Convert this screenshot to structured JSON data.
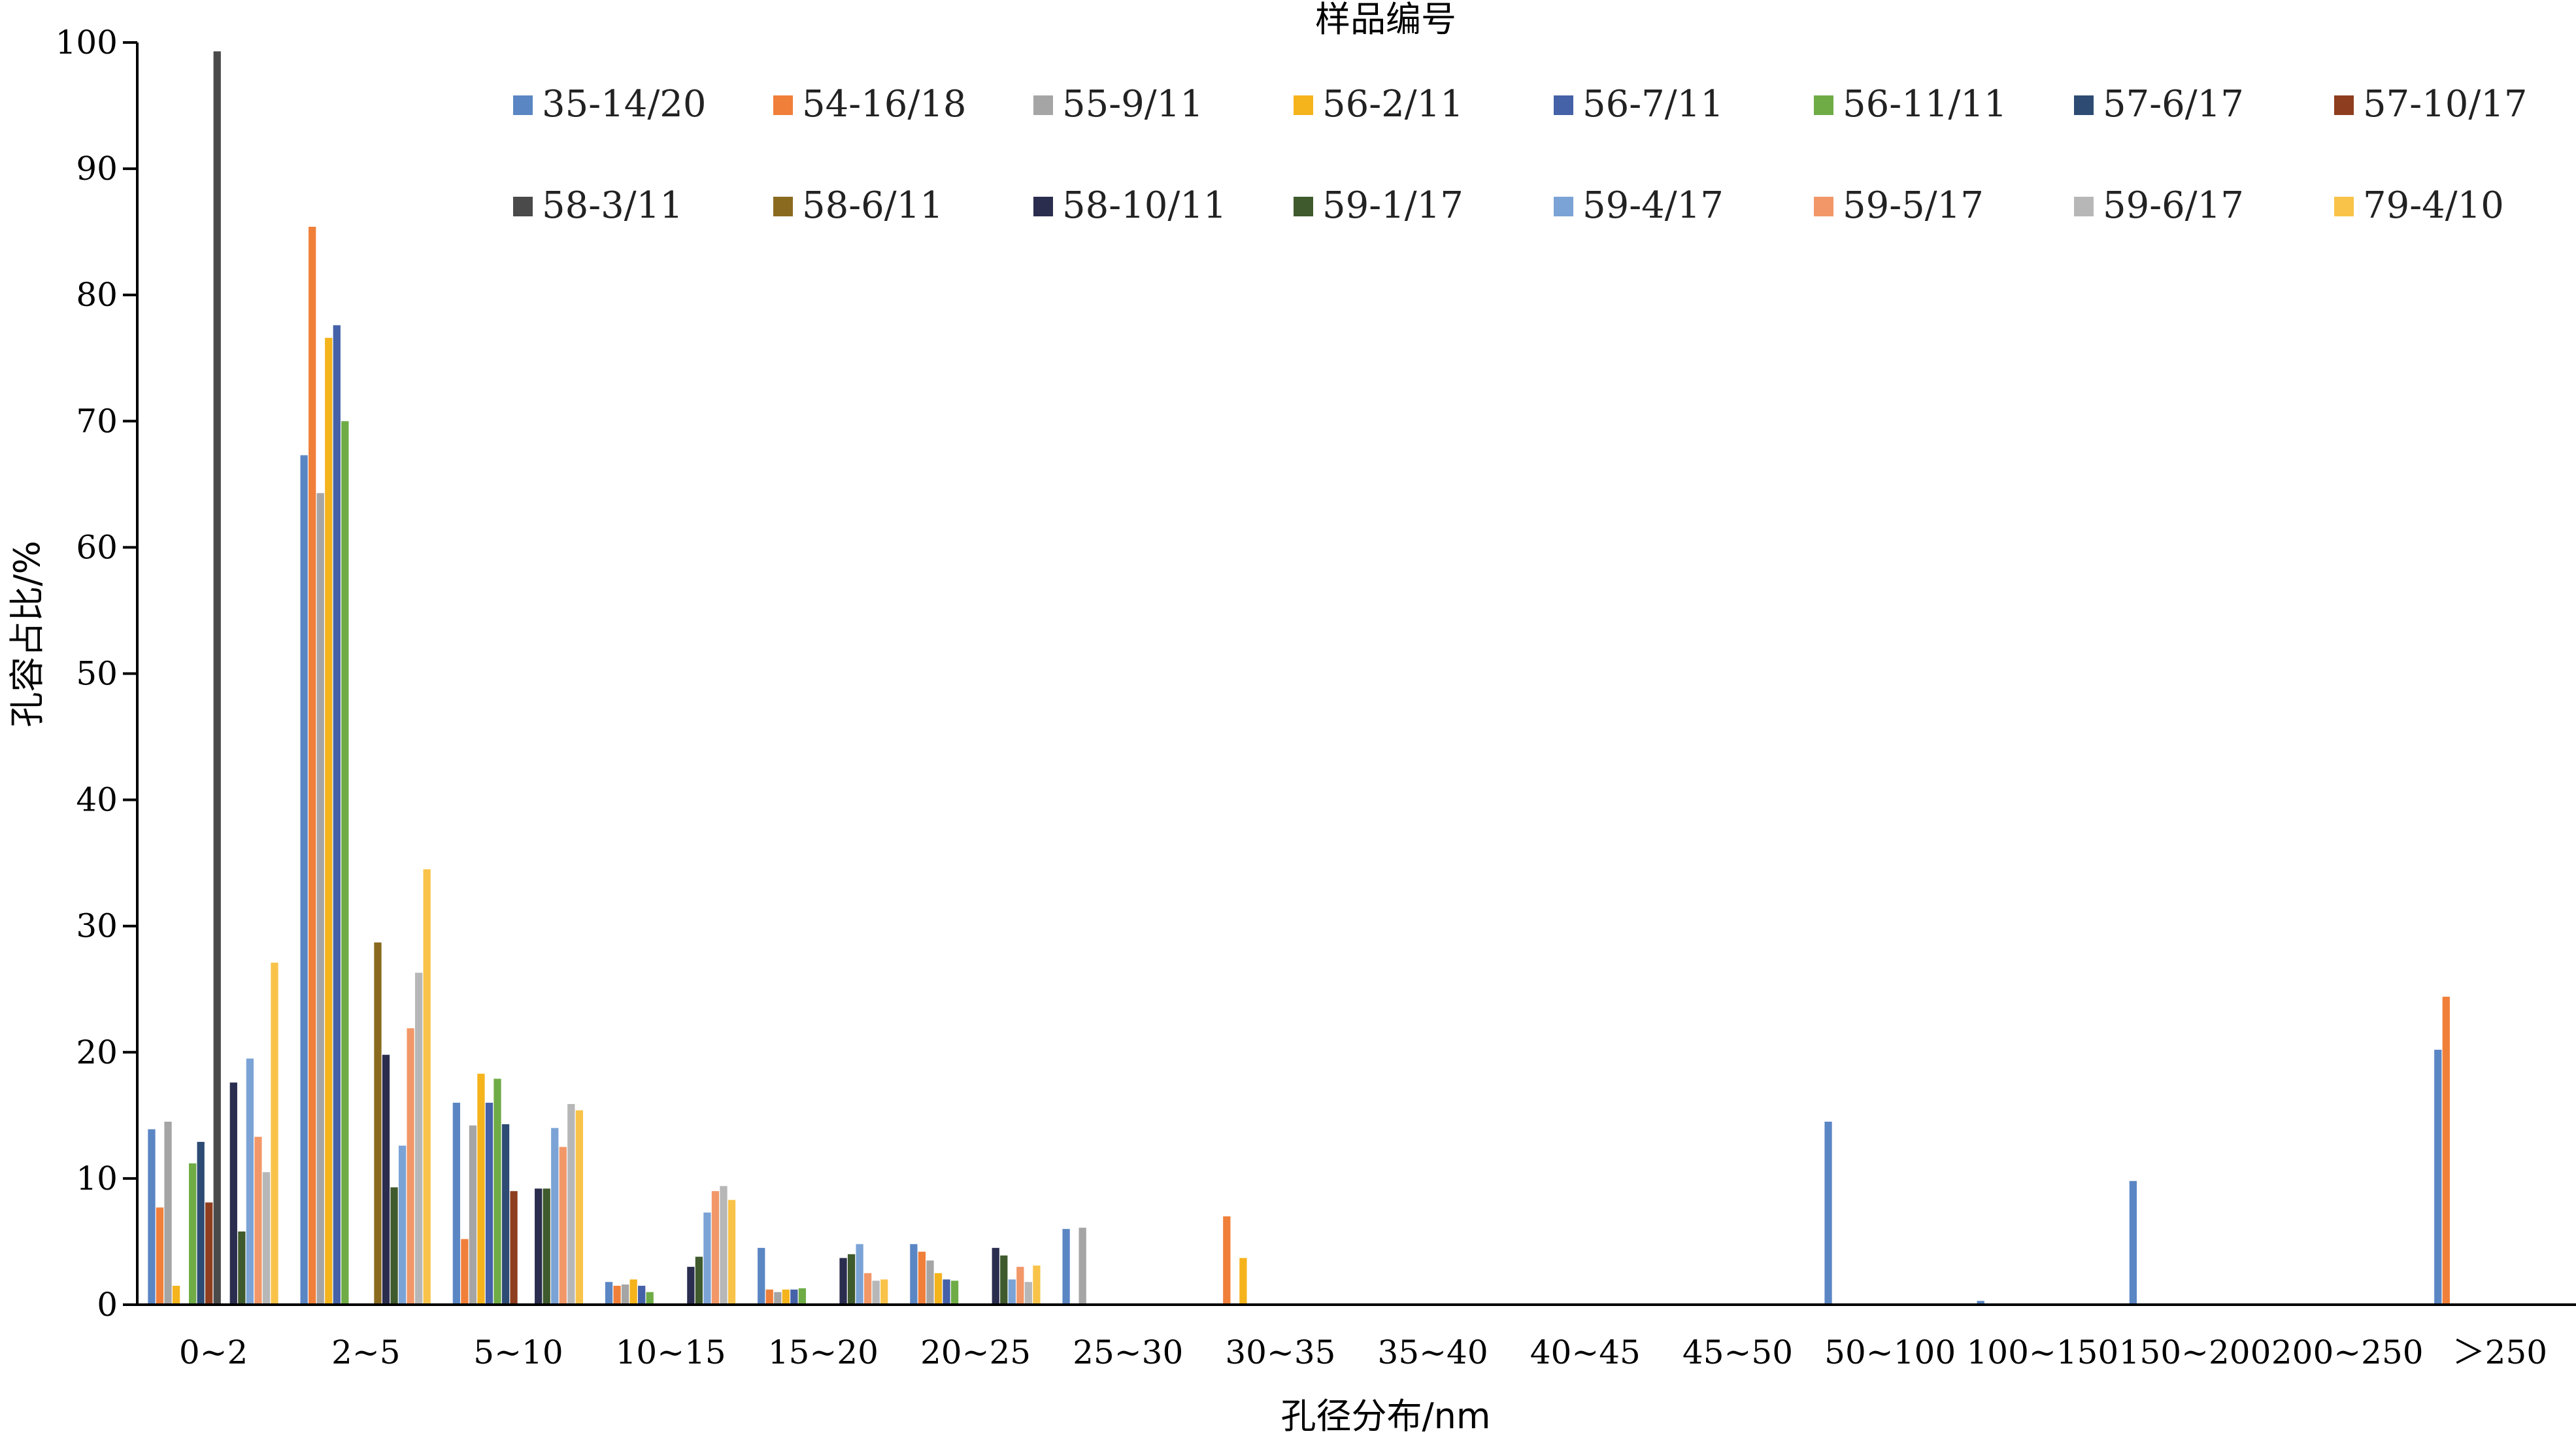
{
  "chart_data": {
    "type": "bar",
    "title": "",
    "xlabel": "孔径分布/nm",
    "ylabel": "孔容占比/%",
    "ylim": [
      0,
      100
    ],
    "yticks": [
      0,
      10,
      20,
      30,
      40,
      50,
      60,
      70,
      80,
      90,
      100
    ],
    "grid": false,
    "legend_title": "样品编号",
    "legend_position": "top-right",
    "categories": [
      "0~2",
      "2~5",
      "5~10",
      "10~15",
      "15~20",
      "20~25",
      "25~30",
      "30~35",
      "35~40",
      "40~45",
      "45~50",
      "50~100",
      "100~150",
      "150~200",
      "200~250",
      "＞250"
    ],
    "series": [
      {
        "name": "35-14/20",
        "color": "#5b86c4",
        "values": [
          13.9,
          67.3,
          16.0,
          1.8,
          4.5,
          4.8,
          6.0,
          0,
          0,
          0,
          0,
          14.5,
          0.3,
          9.8,
          0,
          20.2
        ]
      },
      {
        "name": "54-16/18",
        "color": "#f07f3a",
        "values": [
          7.7,
          85.4,
          5.2,
          1.5,
          1.2,
          4.2,
          0,
          7.0,
          0,
          0,
          0,
          0,
          0,
          0,
          0,
          24.4
        ]
      },
      {
        "name": "55-9/11",
        "color": "#a5a5a5",
        "values": [
          14.5,
          64.3,
          14.2,
          1.6,
          1.0,
          3.5,
          6.1,
          0,
          0,
          0,
          0,
          0,
          0,
          0,
          0,
          0
        ]
      },
      {
        "name": "56-2/11",
        "color": "#f5b31c",
        "values": [
          1.5,
          76.6,
          18.3,
          2.0,
          1.2,
          2.5,
          0,
          3.7,
          0,
          0,
          0,
          0,
          0,
          0,
          0,
          0
        ]
      },
      {
        "name": "56-7/11",
        "color": "#4561a8",
        "values": [
          0,
          77.6,
          16.0,
          1.5,
          1.2,
          2.0,
          0,
          0,
          0,
          0,
          0,
          0,
          0,
          0,
          0,
          0
        ]
      },
      {
        "name": "56-11/11",
        "color": "#6fac46",
        "values": [
          11.2,
          70.0,
          17.9,
          1.0,
          1.3,
          1.9,
          0,
          0,
          0,
          0,
          0,
          0,
          0,
          0,
          0,
          0
        ]
      },
      {
        "name": "57-6/17",
        "color": "#2d4b73",
        "values": [
          12.9,
          0,
          14.3,
          0,
          0,
          0,
          0,
          0,
          0,
          0,
          0,
          0,
          0,
          0,
          0,
          0
        ]
      },
      {
        "name": "57-10/17",
        "color": "#8e3e1e",
        "values": [
          8.1,
          0,
          9.0,
          0,
          0,
          0,
          0,
          0,
          0,
          0,
          0,
          0,
          0,
          0,
          0,
          0
        ]
      },
      {
        "name": "58-3/11",
        "color": "#4a4a4a",
        "values": [
          99.3,
          0,
          0,
          0,
          0,
          0,
          0,
          0,
          0,
          0,
          0,
          0,
          0,
          0,
          0,
          0
        ]
      },
      {
        "name": "58-6/11",
        "color": "#8a6a1f",
        "values": [
          0,
          28.7,
          0,
          0,
          0,
          0,
          0,
          0,
          0,
          0,
          0,
          0,
          0,
          0,
          0,
          0
        ]
      },
      {
        "name": "58-10/11",
        "color": "#2b2d4f",
        "values": [
          17.6,
          19.8,
          9.2,
          3.0,
          3.7,
          4.5,
          0,
          0,
          0,
          0,
          0,
          0,
          0,
          0,
          0,
          0
        ]
      },
      {
        "name": "59-1/17",
        "color": "#3f5a2c",
        "values": [
          5.8,
          9.3,
          9.2,
          3.8,
          4.0,
          3.9,
          0,
          0,
          0,
          0,
          0,
          0,
          0,
          0,
          0,
          0
        ]
      },
      {
        "name": "59-4/17",
        "color": "#7ba3d6",
        "values": [
          19.5,
          12.6,
          14.0,
          7.3,
          4.8,
          2.0,
          0,
          0,
          0,
          0,
          0,
          0,
          0,
          0,
          0,
          0
        ]
      },
      {
        "name": "59-5/17",
        "color": "#f29768",
        "values": [
          13.3,
          21.9,
          12.5,
          9.0,
          2.5,
          3.0,
          0,
          0,
          0,
          0,
          0,
          0,
          0,
          0,
          0,
          0
        ]
      },
      {
        "name": "59-6/17",
        "color": "#b7b7b7",
        "values": [
          10.5,
          26.3,
          15.9,
          9.4,
          1.9,
          1.8,
          0,
          0,
          0,
          0,
          0,
          0,
          0,
          0,
          0,
          0
        ]
      },
      {
        "name": "79-4/10",
        "color": "#f9c34a",
        "values": [
          27.1,
          34.5,
          15.4,
          8.3,
          2.0,
          3.1,
          0,
          0,
          0,
          0,
          0,
          0,
          0,
          0,
          0,
          0
        ]
      }
    ]
  }
}
